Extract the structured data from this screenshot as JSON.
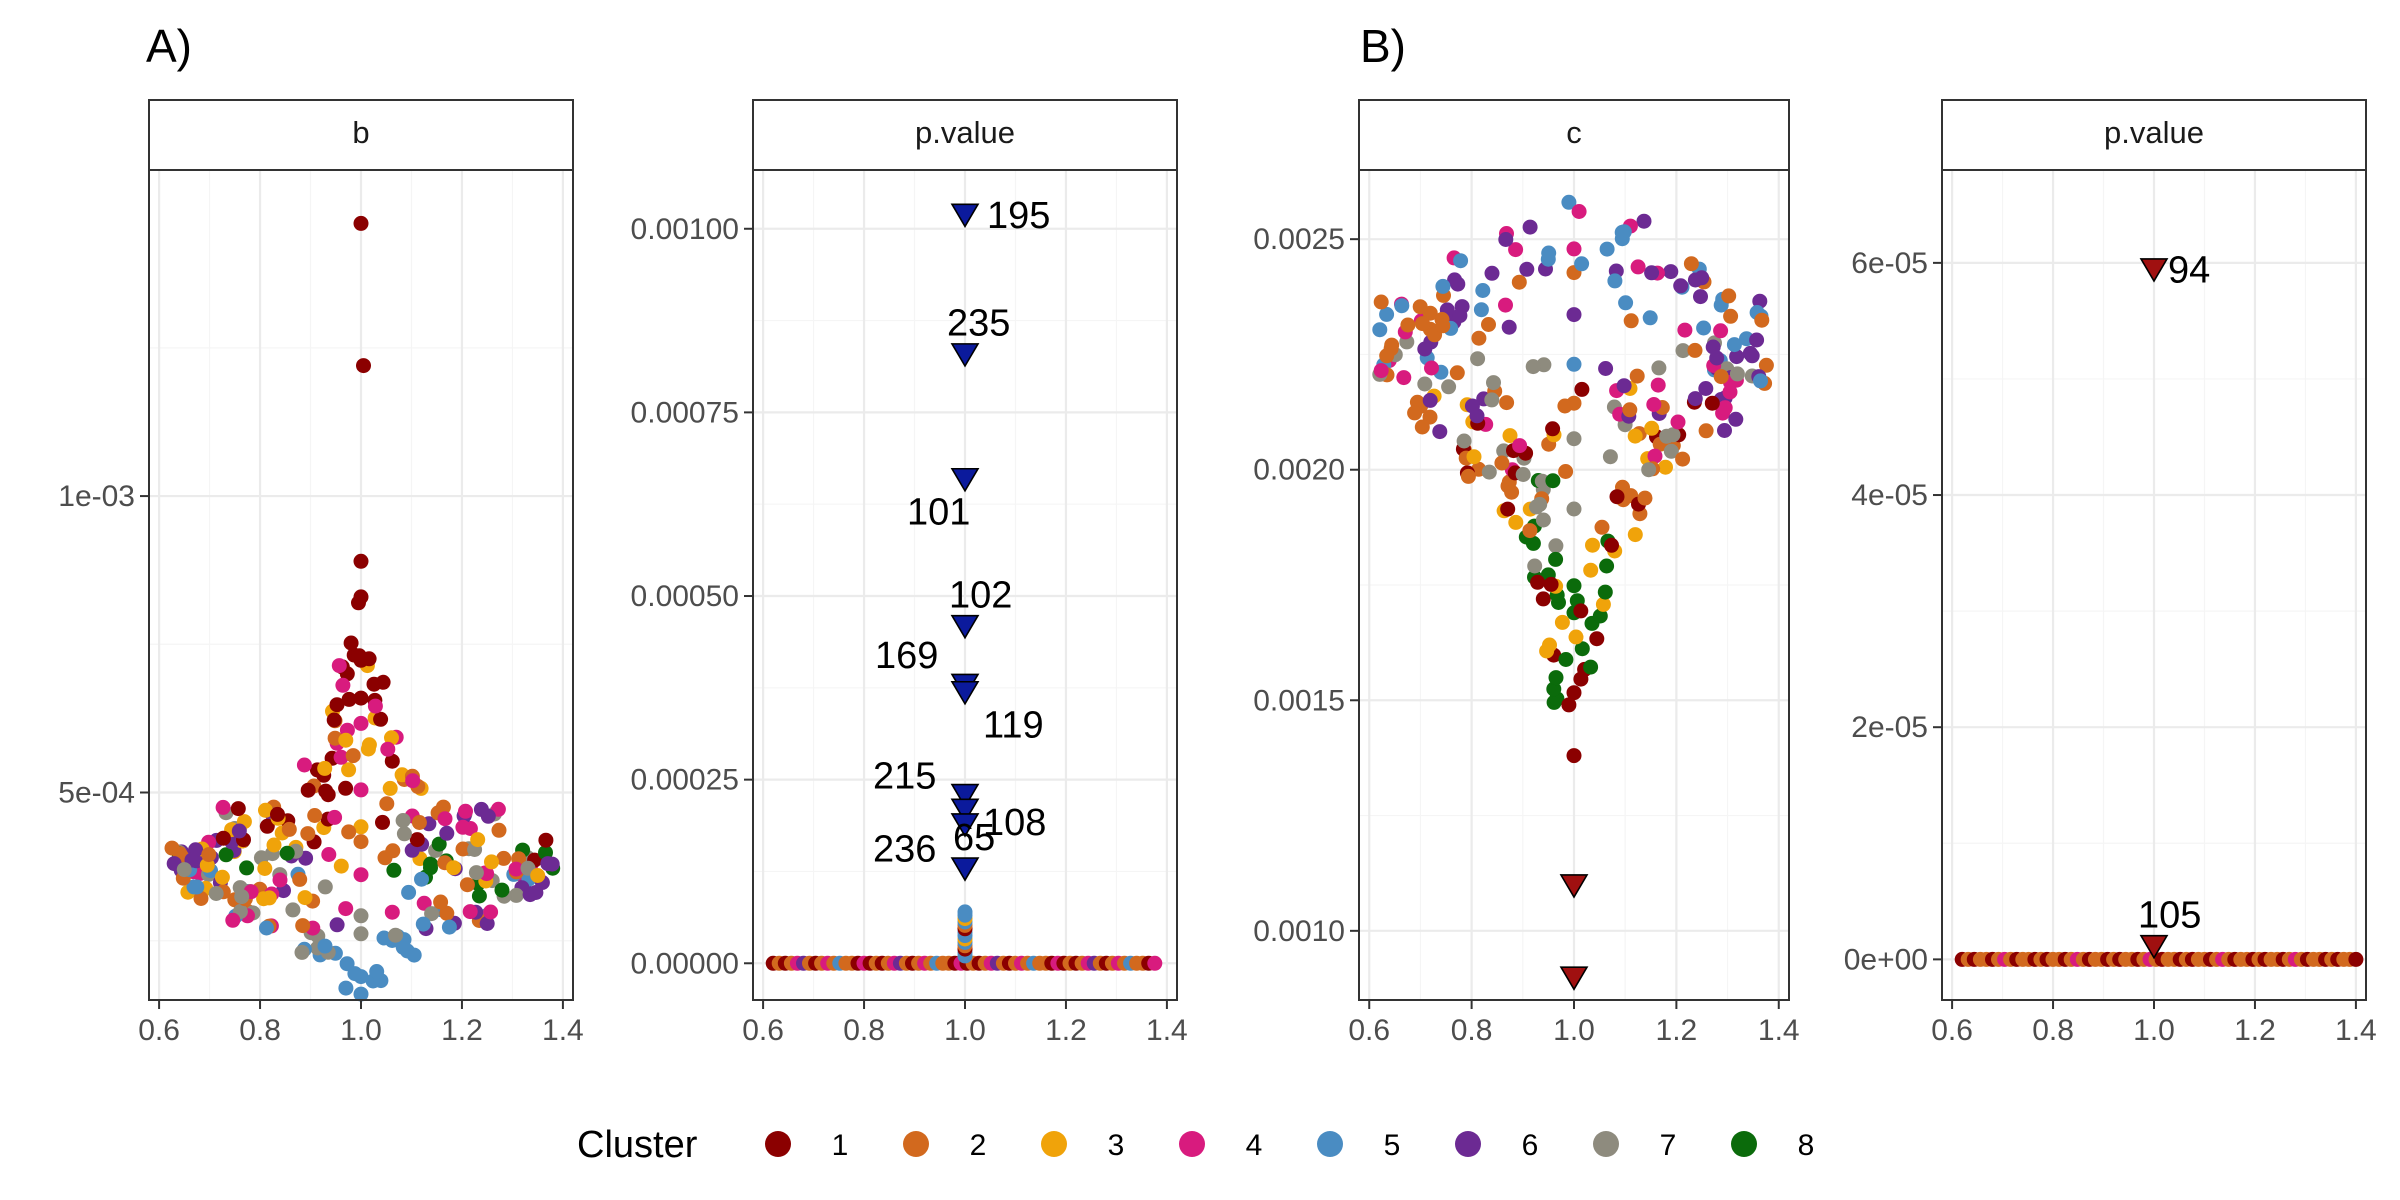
{
  "figure": {
    "tags": [
      "A)",
      "B)"
    ],
    "legend": {
      "title": "Cluster",
      "placement": "bottom",
      "entries": [
        {
          "label": "1",
          "color": "#8B0000"
        },
        {
          "label": "2",
          "color": "#D2691E"
        },
        {
          "label": "3",
          "color": "#F0A30A"
        },
        {
          "label": "4",
          "color": "#D81B7E"
        },
        {
          "label": "5",
          "color": "#4A8CC2"
        },
        {
          "label": "6",
          "color": "#6C2A93"
        },
        {
          "label": "7",
          "color": "#8E8B7E"
        },
        {
          "label": "8",
          "color": "#0B6B0B"
        }
      ]
    }
  },
  "chart_data": [
    {
      "type": "scatter",
      "facet": "b",
      "xlim": [
        0.58,
        1.42
      ],
      "ylim": [
        0.00015,
        0.00155
      ],
      "x_ticks": [
        0.6,
        0.8,
        1.0,
        1.2,
        1.4
      ],
      "x_tick_labels": [
        "0.6",
        "0.8",
        "1.0",
        "1.2",
        "1.4"
      ],
      "y_ticks": [
        0.0005,
        0.001
      ],
      "y_tick_labels": [
        "5e-04",
        "1e-03"
      ],
      "grid": true,
      "beeswarm": {
        "seed": 7,
        "center": 1.0,
        "spread_min": 0.012,
        "bands": [
          {
            "y": [
              0.00018,
              0.00022
            ],
            "count": 6,
            "width": 0.04,
            "clusters": [
              5
            ]
          },
          {
            "y": [
              0.00022,
              0.00027
            ],
            "count": 18,
            "width": 0.12,
            "clusters": [
              5,
              5,
              7
            ]
          },
          {
            "y": [
              0.00027,
              0.00032
            ],
            "count": 34,
            "width": 0.26,
            "clusters": [
              5,
              7,
              6,
              4,
              2
            ]
          },
          {
            "y": [
              0.00032,
              0.00037
            ],
            "count": 60,
            "width": 0.36,
            "clusters": [
              7,
              6,
              4,
              2,
              8,
              5,
              3
            ]
          },
          {
            "y": [
              0.00037,
              0.00042
            ],
            "count": 66,
            "width": 0.38,
            "clusters": [
              7,
              6,
              4,
              2,
              8,
              3,
              1
            ]
          },
          {
            "y": [
              0.00042,
              0.00048
            ],
            "count": 48,
            "width": 0.28,
            "clusters": [
              4,
              2,
              3,
              6,
              1,
              7
            ]
          },
          {
            "y": [
              0.00048,
              0.00056
            ],
            "count": 22,
            "width": 0.12,
            "clusters": [
              3,
              4,
              2,
              1
            ]
          },
          {
            "y": [
              0.00056,
              0.00064
            ],
            "count": 16,
            "width": 0.07,
            "clusters": [
              3,
              1,
              4,
              2
            ]
          },
          {
            "y": [
              0.00064,
              0.00072
            ],
            "count": 12,
            "width": 0.05,
            "clusters": [
              1,
              1,
              3,
              4
            ]
          },
          {
            "y": [
              0.00072,
              0.00078
            ],
            "count": 5,
            "width": 0.02,
            "clusters": [
              1
            ]
          }
        ]
      },
      "points": [
        {
          "x": 1.0,
          "y": 0.00146,
          "cluster": 1
        },
        {
          "x": 1.005,
          "y": 0.00122,
          "cluster": 1
        },
        {
          "x": 1.0,
          "y": 0.00089,
          "cluster": 1
        },
        {
          "x": 1.0,
          "y": 0.00083,
          "cluster": 1
        },
        {
          "x": 0.995,
          "y": 0.00082,
          "cluster": 1
        },
        {
          "x": 0.63,
          "y": 0.00038,
          "cluster": 6
        },
        {
          "x": 0.65,
          "y": 0.00037,
          "cluster": 7
        },
        {
          "x": 1.37,
          "y": 0.00038,
          "cluster": 6
        },
        {
          "x": 1.35,
          "y": 0.00036,
          "cluster": 3
        },
        {
          "x": 0.97,
          "y": 0.00017,
          "cluster": 5
        },
        {
          "x": 1.0,
          "y": 0.00016,
          "cluster": 5
        }
      ]
    },
    {
      "type": "scatter",
      "facet": "p.value",
      "xlim": [
        0.58,
        1.42
      ],
      "ylim": [
        -5e-05,
        0.00108
      ],
      "x_ticks": [
        0.6,
        0.8,
        1.0,
        1.2,
        1.4
      ],
      "x_tick_labels": [
        "0.6",
        "0.8",
        "1.0",
        "1.2",
        "1.4"
      ],
      "y_ticks": [
        0.0,
        0.00025,
        0.0005,
        0.00075,
        0.001
      ],
      "y_tick_labels": [
        "0.00000",
        "0.00025",
        "0.00050",
        "0.00075",
        "0.00100"
      ],
      "grid": true,
      "baseline": {
        "y": 0.0,
        "x_range": [
          0.62,
          1.38
        ],
        "step": 0.012,
        "clusters": [
          1,
          2,
          1,
          2,
          4,
          6,
          2,
          1,
          2,
          4,
          2,
          5,
          2,
          2,
          1,
          4
        ]
      },
      "stem": {
        "x": 1.0,
        "y": [
          1e-05,
          7e-05
        ],
        "count": 14,
        "clusters": [
          5,
          5,
          1,
          2,
          5,
          3
        ]
      },
      "significant": [
        {
          "x": 1.0,
          "y": 0.00102,
          "label": "195"
        },
        {
          "x": 1.0,
          "y": 0.00083,
          "label": "235"
        },
        {
          "x": 1.0,
          "y": 0.00066,
          "label": "101"
        },
        {
          "x": 1.0,
          "y": 0.00046,
          "label": "102"
        },
        {
          "x": 1.0,
          "y": 0.00038,
          "label": "169"
        },
        {
          "x": 1.0,
          "y": 0.00037,
          "label": "119"
        },
        {
          "x": 1.0,
          "y": 0.00023,
          "label": "215"
        },
        {
          "x": 1.0,
          "y": 0.00021,
          "label": "108"
        },
        {
          "x": 1.0,
          "y": 0.00019,
          "label": "236"
        },
        {
          "x": 1.0,
          "y": 0.00013,
          "label": "65"
        }
      ]
    },
    {
      "type": "scatter",
      "facet": "c",
      "xlim": [
        0.58,
        1.42
      ],
      "ylim": [
        0.00085,
        0.00265
      ],
      "x_ticks": [
        0.6,
        0.8,
        1.0,
        1.2,
        1.4
      ],
      "x_tick_labels": [
        "0.6",
        "0.8",
        "1.0",
        "1.2",
        "1.4"
      ],
      "y_ticks": [
        0.001,
        0.0015,
        0.002,
        0.0025
      ],
      "y_tick_labels": [
        "0.0010",
        "0.0015",
        "0.0020",
        "0.0025"
      ],
      "grid": true,
      "beeswarm": {
        "seed": 13,
        "center": 1.0,
        "spread_min": 0.012,
        "bands": [
          {
            "y": [
              0.00149,
              0.0016
            ],
            "count": 10,
            "width": 0.04,
            "clusters": [
              1,
              8,
              1
            ]
          },
          {
            "y": [
              0.0016,
              0.00172
            ],
            "count": 14,
            "width": 0.06,
            "clusters": [
              8,
              3,
              1,
              8
            ]
          },
          {
            "y": [
              0.00172,
              0.00185
            ],
            "count": 18,
            "width": 0.08,
            "clusters": [
              8,
              3,
              1,
              7
            ]
          },
          {
            "y": [
              0.00185,
              0.00198
            ],
            "count": 28,
            "width": 0.14,
            "clusters": [
              7,
              3,
              8,
              2,
              1
            ]
          },
          {
            "y": [
              0.00198,
              0.00208
            ],
            "count": 40,
            "width": 0.22,
            "clusters": [
              7,
              2,
              3,
              1,
              4
            ]
          },
          {
            "y": [
              0.00208,
              0.00218
            ],
            "count": 48,
            "width": 0.32,
            "clusters": [
              2,
              7,
              4,
              6,
              3,
              1
            ]
          },
          {
            "y": [
              0.00218,
              0.00228
            ],
            "count": 52,
            "width": 0.38,
            "clusters": [
              4,
              6,
              5,
              2,
              7
            ]
          },
          {
            "y": [
              0.00228,
              0.00238
            ],
            "count": 44,
            "width": 0.38,
            "clusters": [
              4,
              6,
              5,
              2
            ]
          },
          {
            "y": [
              0.00238,
              0.00246
            ],
            "count": 26,
            "width": 0.26,
            "clusters": [
              5,
              4,
              6,
              2
            ]
          },
          {
            "y": [
              0.00246,
              0.00255
            ],
            "count": 12,
            "width": 0.14,
            "clusters": [
              5,
              4,
              6
            ]
          }
        ]
      },
      "points": [
        {
          "x": 1.0,
          "y": 0.00138,
          "cluster": 1
        },
        {
          "x": 0.99,
          "y": 0.00149,
          "cluster": 1
        },
        {
          "x": 0.99,
          "y": 0.00258,
          "cluster": 5
        },
        {
          "x": 1.01,
          "y": 0.00256,
          "cluster": 4
        }
      ],
      "significant": [
        {
          "x": 1.0,
          "y": 0.0011,
          "label": ""
        },
        {
          "x": 1.0,
          "y": 0.0009,
          "label": ""
        }
      ]
    },
    {
      "type": "scatter",
      "facet": "p.value",
      "xlim": [
        0.58,
        1.42
      ],
      "ylim": [
        -3.5e-06,
        6.8e-05
      ],
      "x_ticks": [
        0.6,
        0.8,
        1.0,
        1.2,
        1.4
      ],
      "x_tick_labels": [
        "0.6",
        "0.8",
        "1.0",
        "1.2",
        "1.4"
      ],
      "y_ticks": [
        0.0,
        2e-05,
        4e-05,
        6e-05
      ],
      "y_tick_labels": [
        "0e+00",
        "2e-05",
        "4e-05",
        "6e-05"
      ],
      "grid": true,
      "baseline": {
        "y": 0.0,
        "x_range": [
          0.62,
          1.4
        ],
        "step": 0.012,
        "clusters": [
          1,
          2,
          1,
          2,
          2,
          1,
          2,
          4,
          2,
          1,
          2,
          2
        ]
      },
      "significant": [
        {
          "x": 1.0,
          "y": 5.95e-05,
          "label": "94"
        },
        {
          "x": 1.0,
          "y": 1.2e-06,
          "label": "105"
        }
      ]
    }
  ]
}
